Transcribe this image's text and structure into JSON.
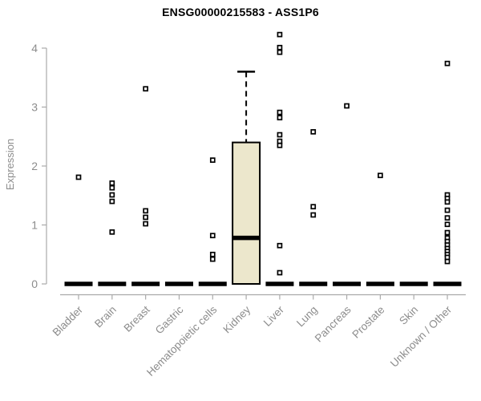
{
  "page": {
    "title": "ENSG00000215583 - ASS1P6"
  },
  "chart_data": {
    "type": "boxplot",
    "title": "ENSG00000215583 - ASS1P6",
    "xlabel": "",
    "ylabel": "Expression",
    "ylim": [
      0,
      4.35
    ],
    "yticks": [
      0,
      1,
      2,
      3,
      4
    ],
    "grid": false,
    "legend": false,
    "marker_style": "open-square",
    "categories": [
      "Bladder",
      "Brain",
      "Breast",
      "Gastric",
      "Hematopoietic cells",
      "Kidney",
      "Liver",
      "Lung",
      "Pancreas",
      "Prostate",
      "Skin",
      "Unknown / Other"
    ],
    "boxes": [
      {
        "category": "Bladder",
        "q1": 0,
        "median": 0,
        "q3": 0,
        "whisker_low": 0,
        "whisker_high": 0,
        "outliers": [
          1.81
        ]
      },
      {
        "category": "Brain",
        "q1": 0,
        "median": 0,
        "q3": 0,
        "whisker_low": 0,
        "whisker_high": 0,
        "outliers": [
          1.71,
          1.63,
          1.51,
          1.4,
          0.88
        ]
      },
      {
        "category": "Breast",
        "q1": 0,
        "median": 0,
        "q3": 0,
        "whisker_low": 0,
        "whisker_high": 0,
        "outliers": [
          3.31,
          1.24,
          1.13,
          1.02
        ]
      },
      {
        "category": "Gastric",
        "q1": 0,
        "median": 0,
        "q3": 0,
        "whisker_low": 0,
        "whisker_high": 0,
        "outliers": []
      },
      {
        "category": "Hematopoietic cells",
        "q1": 0,
        "median": 0,
        "q3": 0,
        "whisker_low": 0,
        "whisker_high": 0,
        "outliers": [
          2.1,
          0.82,
          0.5,
          0.42
        ]
      },
      {
        "category": "Kidney",
        "q1": 0,
        "median": 0.78,
        "q3": 2.4,
        "whisker_low": 0,
        "whisker_high": 3.6,
        "outliers": []
      },
      {
        "category": "Liver",
        "q1": 0,
        "median": 0,
        "q3": 0,
        "whisker_low": 0,
        "whisker_high": 0,
        "outliers": [
          4.23,
          4.01,
          3.93,
          2.91,
          2.82,
          2.53,
          2.42,
          2.35,
          0.65,
          0.19
        ]
      },
      {
        "category": "Lung",
        "q1": 0,
        "median": 0,
        "q3": 0,
        "whisker_low": 0,
        "whisker_high": 0,
        "outliers": [
          2.58,
          1.31,
          1.17
        ]
      },
      {
        "category": "Pancreas",
        "q1": 0,
        "median": 0,
        "q3": 0,
        "whisker_low": 0,
        "whisker_high": 0,
        "outliers": [
          3.02
        ]
      },
      {
        "category": "Prostate",
        "q1": 0,
        "median": 0,
        "q3": 0,
        "whisker_low": 0,
        "whisker_high": 0,
        "outliers": [
          1.84
        ]
      },
      {
        "category": "Skin",
        "q1": 0,
        "median": 0,
        "q3": 0,
        "whisker_low": 0,
        "whisker_high": 0,
        "outliers": []
      },
      {
        "category": "Unknown / Other",
        "q1": 0,
        "median": 0,
        "q3": 0,
        "whisker_low": 0,
        "whisker_high": 0,
        "outliers": [
          3.74,
          1.51,
          1.45,
          1.39,
          1.25,
          1.12,
          1.01,
          0.87,
          0.78,
          0.72,
          0.66,
          0.6,
          0.55,
          0.5,
          0.45,
          0.38
        ]
      }
    ],
    "colors": {
      "box_fill": "#ece7cc",
      "box_border": "#000000",
      "median": "#000000",
      "outlier": "#000000",
      "outlier_fill": "#ffffff",
      "axis_line": "#aaaaaa",
      "axis_text": "#8c8c8c",
      "title": "#000000",
      "background": "#ffffff"
    }
  }
}
